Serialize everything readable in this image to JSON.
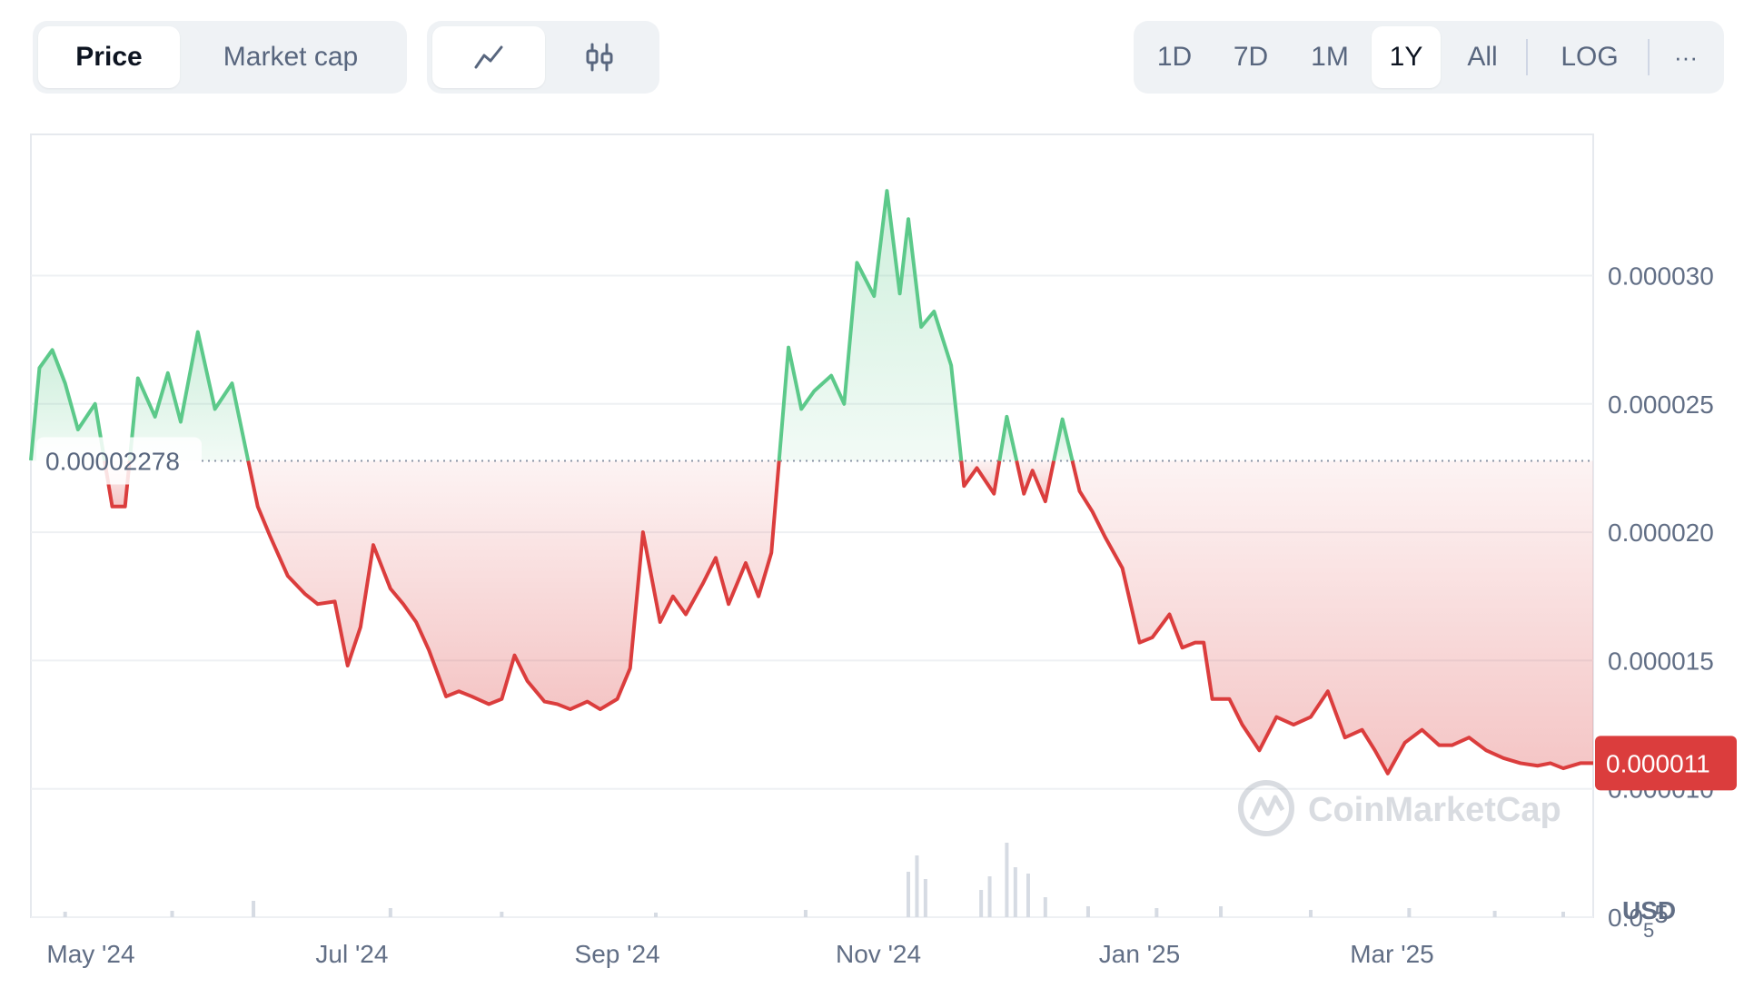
{
  "toolbar": {
    "metric_tabs": [
      {
        "label": "Price",
        "active": true
      },
      {
        "label": "Market cap",
        "active": false
      }
    ],
    "chart_type_icons": [
      {
        "icon": "line-chart-icon",
        "active": true
      },
      {
        "icon": "candlestick-icon",
        "active": false
      }
    ],
    "ranges": [
      {
        "label": "1D",
        "active": false
      },
      {
        "label": "7D",
        "active": false
      },
      {
        "label": "1M",
        "active": false
      },
      {
        "label": "1Y",
        "active": true
      },
      {
        "label": "All",
        "active": false
      }
    ],
    "log_label": "LOG",
    "more_label": "···"
  },
  "watermark": "CoinMarketCap",
  "colors": {
    "up": "#5cc98a",
    "down": "#db3d3d",
    "up_fill": "#dff4e6",
    "down_fill": "#f5c9c9",
    "badge": "#db3d3d",
    "text_muted": "#616e85",
    "grid": "#eef0f3"
  },
  "chart_data": {
    "type": "area",
    "series": [
      {
        "x": [
          "2024-04-17",
          "2024-04-19",
          "2024-04-22",
          "2024-04-25",
          "2024-04-28",
          "2024-05-02",
          "2024-05-06",
          "2024-05-09",
          "2024-05-12",
          "2024-05-16",
          "2024-05-19",
          "2024-05-22",
          "2024-05-26",
          "2024-05-30",
          "2024-06-03",
          "2024-06-06",
          "2024-06-09",
          "2024-06-12",
          "2024-06-16",
          "2024-06-20",
          "2024-06-23",
          "2024-06-27",
          "2024-06-30",
          "2024-07-03",
          "2024-07-06",
          "2024-07-10",
          "2024-07-13",
          "2024-07-16",
          "2024-07-19",
          "2024-07-23",
          "2024-07-26",
          "2024-07-29",
          "2024-08-02",
          "2024-08-05",
          "2024-08-08",
          "2024-08-11",
          "2024-08-15",
          "2024-08-18",
          "2024-08-21",
          "2024-08-25",
          "2024-08-28",
          "2024-09-01",
          "2024-09-04",
          "2024-09-07",
          "2024-09-11",
          "2024-09-14",
          "2024-09-17",
          "2024-09-21",
          "2024-09-24",
          "2024-09-27",
          "2024-10-01",
          "2024-10-04",
          "2024-10-07",
          "2024-10-11",
          "2024-10-14",
          "2024-10-17",
          "2024-10-21",
          "2024-10-24",
          "2024-10-27",
          "2024-10-31",
          "2024-11-03",
          "2024-11-06",
          "2024-11-08",
          "2024-11-11",
          "2024-11-14",
          "2024-11-18",
          "2024-11-21",
          "2024-11-24",
          "2024-11-28",
          "2024-12-01",
          "2024-12-03",
          "2024-12-05",
          "2024-12-07",
          "2024-12-10",
          "2024-12-14",
          "2024-12-18",
          "2024-12-21",
          "2024-12-24",
          "2024-12-28",
          "2025-01-01",
          "2025-01-04",
          "2025-01-08",
          "2025-01-11",
          "2025-01-14",
          "2025-01-16",
          "2025-01-18",
          "2025-01-22",
          "2025-01-25",
          "2025-01-29",
          "2025-02-02",
          "2025-02-06",
          "2025-02-10",
          "2025-02-14",
          "2025-02-18",
          "2025-02-22",
          "2025-02-25",
          "2025-02-28",
          "2025-03-04",
          "2025-03-08",
          "2025-03-12",
          "2025-03-15",
          "2025-03-19",
          "2025-03-23",
          "2025-03-27",
          "2025-03-31",
          "2025-04-04",
          "2025-04-07",
          "2025-04-10",
          "2025-04-14",
          "2025-04-17"
        ],
        "y": [
          2.28e-05,
          2.64e-05,
          2.71e-05,
          2.58e-05,
          2.4e-05,
          2.5e-05,
          2.1e-05,
          2.1e-05,
          2.6e-05,
          2.45e-05,
          2.62e-05,
          2.43e-05,
          2.78e-05,
          2.48e-05,
          2.58e-05,
          2.34e-05,
          2.1e-05,
          1.98e-05,
          1.83e-05,
          1.76e-05,
          1.72e-05,
          1.73e-05,
          1.48e-05,
          1.63e-05,
          1.95e-05,
          1.78e-05,
          1.72e-05,
          1.65e-05,
          1.54e-05,
          1.36e-05,
          1.38e-05,
          1.36e-05,
          1.33e-05,
          1.35e-05,
          1.52e-05,
          1.42e-05,
          1.34e-05,
          1.33e-05,
          1.31e-05,
          1.34e-05,
          1.31e-05,
          1.35e-05,
          1.47e-05,
          2e-05,
          1.65e-05,
          1.75e-05,
          1.68e-05,
          1.8e-05,
          1.9e-05,
          1.72e-05,
          1.88e-05,
          1.75e-05,
          1.92e-05,
          2.72e-05,
          2.48e-05,
          2.55e-05,
          2.61e-05,
          2.5e-05,
          3.05e-05,
          2.92e-05,
          3.33e-05,
          2.93e-05,
          3.22e-05,
          2.8e-05,
          2.86e-05,
          2.65e-05,
          2.18e-05,
          2.25e-05,
          2.15e-05,
          2.45e-05,
          2.3e-05,
          2.15e-05,
          2.24e-05,
          2.12e-05,
          2.44e-05,
          2.16e-05,
          2.08e-05,
          1.98e-05,
          1.86e-05,
          1.57e-05,
          1.59e-05,
          1.68e-05,
          1.55e-05,
          1.57e-05,
          1.57e-05,
          1.35e-05,
          1.35e-05,
          1.25e-05,
          1.15e-05,
          1.28e-05,
          1.25e-05,
          1.28e-05,
          1.38e-05,
          1.2e-05,
          1.23e-05,
          1.15e-05,
          1.06e-05,
          1.18e-05,
          1.23e-05,
          1.17e-05,
          1.17e-05,
          1.2e-05,
          1.15e-05,
          1.12e-05,
          1.1e-05,
          1.09e-05,
          1.1e-05,
          1.08e-05,
          1.1e-05,
          1.1e-05
        ]
      }
    ],
    "baseline": 2.278e-05,
    "baseline_label": "0.00002278",
    "current_label": "0.000011",
    "ylim": [
      5e-06,
      3.55e-05
    ],
    "y_ticks": [
      {
        "value": 3e-05,
        "label": "0.000030"
      },
      {
        "value": 2.5e-05,
        "label": "0.000025"
      },
      {
        "value": 2e-05,
        "label": "0.000020"
      },
      {
        "value": 1.5e-05,
        "label": "0.000015"
      },
      {
        "value": 1e-05,
        "label": "0.000010"
      },
      {
        "value": 5e-06,
        "label": "0.0",
        "sub": "5",
        "suffix": "5"
      }
    ],
    "x_ticks": [
      {
        "date": "2024-05-01",
        "label": "May '24"
      },
      {
        "date": "2024-07-01",
        "label": "Jul '24"
      },
      {
        "date": "2024-09-01",
        "label": "Sep '24"
      },
      {
        "date": "2024-11-01",
        "label": "Nov '24"
      },
      {
        "date": "2025-01-01",
        "label": "Jan '25"
      },
      {
        "date": "2025-03-01",
        "label": "Mar '25"
      }
    ],
    "xlim": [
      "2024-04-17",
      "2025-04-17"
    ],
    "volume": {
      "x": [
        "2024-04-25",
        "2024-05-20",
        "2024-06-08",
        "2024-07-10",
        "2024-08-05",
        "2024-09-10",
        "2024-10-15",
        "2024-11-08",
        "2024-11-10",
        "2024-11-12",
        "2024-11-25",
        "2024-11-27",
        "2024-12-01",
        "2024-12-03",
        "2024-12-06",
        "2024-12-10",
        "2024-12-20",
        "2025-01-05",
        "2025-01-20",
        "2025-02-10",
        "2025-03-05",
        "2025-03-25",
        "2025-04-10"
      ],
      "y": [
        0.06,
        0.07,
        0.18,
        0.1,
        0.06,
        0.05,
        0.08,
        0.5,
        0.68,
        0.42,
        0.3,
        0.45,
        0.82,
        0.55,
        0.48,
        0.22,
        0.12,
        0.1,
        0.12,
        0.08,
        0.1,
        0.07,
        0.06
      ]
    },
    "unit_label": "USD",
    "grid": true
  }
}
